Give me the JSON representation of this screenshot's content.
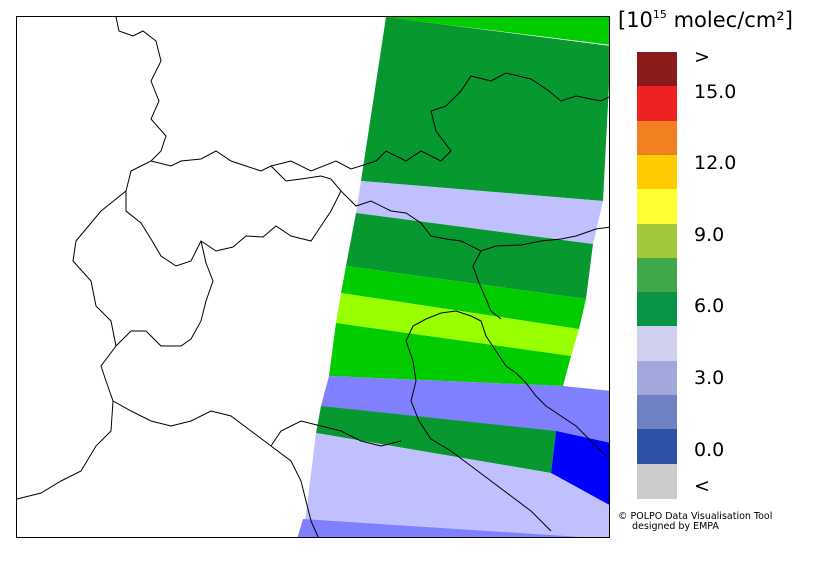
{
  "legend": {
    "unit_prefix": "[10",
    "unit_exponent": "15",
    "unit_suffix": " molec/cm²]",
    "colors": [
      "#cccccc",
      "#2d52a7",
      "#6f80c4",
      "#a3a8dc",
      "#d0d0ee",
      "#0a9448",
      "#40a84b",
      "#a0c83a",
      "#ffff33",
      "#ffcc00",
      "#f08020",
      "#ee2222",
      "#8b1a1a"
    ],
    "labels": [
      ">",
      "15.0",
      "12.0",
      "9.0",
      "6.0",
      "3.0",
      "0.0",
      "<"
    ]
  },
  "map": {
    "swath_colors": {
      "light_green": "#00cc00",
      "dark_green": "#079930",
      "lavender": "#c0c0ff",
      "yellow_green": "#99ff00",
      "periwinkle": "#8080ff",
      "blue": "#0000ff"
    }
  },
  "credit": {
    "line1": "© POLPO Data Visualisation Tool",
    "line2": "designed by EMPA"
  }
}
